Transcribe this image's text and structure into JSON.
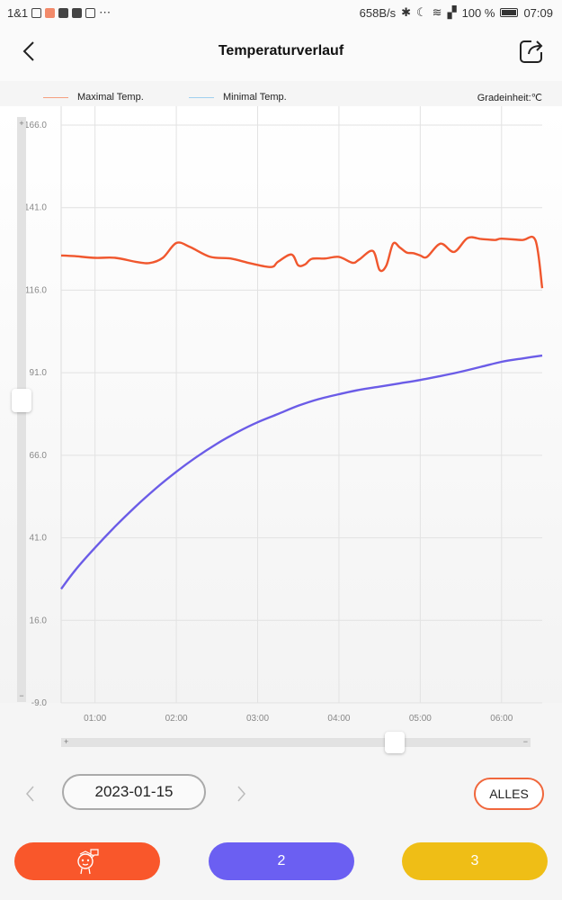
{
  "status_bar": {
    "carrier": "1&1",
    "speed": "658B/s",
    "battery": "100 %",
    "time": "07:09"
  },
  "header": {
    "title": "Temperaturverlauf"
  },
  "legend": {
    "max_label": "Maximal Temp.",
    "min_label": "Minimal Temp.",
    "unit_label": "Gradeinheit:℃"
  },
  "chart_data": {
    "type": "line",
    "ylim": [
      -9.0,
      166.0
    ],
    "yticks": [
      "166.0",
      "141.0",
      "116.0",
      "91.0",
      "66.0",
      "41.0",
      "16.0",
      "-9.0"
    ],
    "xlim": [
      "00:35",
      "06:30"
    ],
    "xticks": [
      "01:00",
      "02:00",
      "03:00",
      "04:00",
      "05:00",
      "06:00"
    ],
    "grid": true,
    "series": [
      {
        "name": "Maximal Temp.",
        "color": "#f0572e",
        "x": [
          "00:35",
          "00:45",
          "01:00",
          "01:15",
          "01:30",
          "01:40",
          "01:50",
          "02:00",
          "02:10",
          "02:25",
          "02:40",
          "02:55",
          "03:10",
          "03:15",
          "03:25",
          "03:30",
          "03:35",
          "03:40",
          "03:50",
          "04:00",
          "04:10",
          "04:15",
          "04:25",
          "04:30",
          "04:35",
          "04:40",
          "04:45",
          "04:50",
          "04:55",
          "05:00",
          "05:05",
          "05:15",
          "05:25",
          "05:35",
          "05:45",
          "05:55",
          "06:00",
          "06:15",
          "06:25",
          "06:30"
        ],
        "y": [
          126.5,
          126.3,
          125.8,
          125.8,
          124.6,
          124.2,
          125.8,
          130.3,
          129.1,
          126.1,
          125.6,
          124.1,
          123.0,
          124.6,
          126.8,
          123.5,
          123.8,
          125.5,
          125.6,
          126.1,
          124.3,
          125.3,
          127.9,
          122.1,
          123.5,
          130.1,
          128.9,
          127.4,
          127.2,
          126.5,
          126.1,
          130.1,
          127.6,
          131.8,
          131.5,
          131.2,
          131.6,
          131.2,
          131.1,
          116.6
        ]
      },
      {
        "name": "Minimal Temp.",
        "color": "#6b5ce7",
        "x": [
          "00:35",
          "00:45",
          "01:00",
          "01:15",
          "01:30",
          "01:45",
          "02:00",
          "02:15",
          "02:30",
          "02:45",
          "03:00",
          "03:15",
          "03:30",
          "03:45",
          "04:00",
          "04:15",
          "04:30",
          "04:45",
          "05:00",
          "05:15",
          "05:30",
          "05:45",
          "06:00",
          "06:15",
          "06:30"
        ],
        "y": [
          25.5,
          31.0,
          38.0,
          44.5,
          50.5,
          56.0,
          61.0,
          65.5,
          69.5,
          73.0,
          76.0,
          78.5,
          81.0,
          83.0,
          84.5,
          85.8,
          86.8,
          87.8,
          88.8,
          90.0,
          91.3,
          92.8,
          94.3,
          95.3,
          96.2
        ]
      }
    ]
  },
  "controls": {
    "prev_icon": "chevron-left-icon",
    "next_icon": "chevron-right-icon",
    "date": "2023-01-15",
    "all_label": "ALLES"
  },
  "tabs": [
    {
      "label": "",
      "icon": "probe-character-icon",
      "color": "#f9572b"
    },
    {
      "label": "2",
      "color": "#6b5ff2"
    },
    {
      "label": "3",
      "color": "#efbe16"
    }
  ]
}
